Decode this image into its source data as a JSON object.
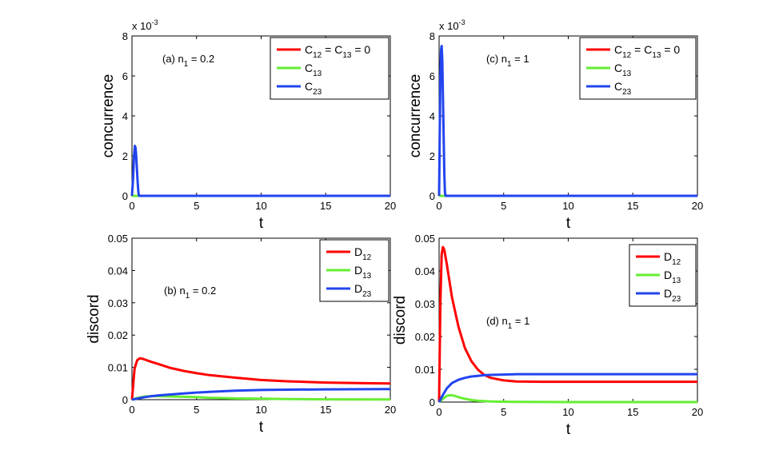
{
  "chart_data": [
    {
      "id": "a",
      "type": "line",
      "annotation": "(a) n",
      "annotation_sub": "1",
      "annotation_tail": " = 0.2",
      "xlabel": "t",
      "ylabel": "concurrence",
      "exponent_label": "x 10",
      "exponent_power": "-3",
      "xlim": [
        0,
        20
      ],
      "ylim": [
        0,
        8
      ],
      "xticks": [
        "0",
        "5",
        "10",
        "15",
        "20"
      ],
      "yticks": [
        "0",
        "2",
        "4",
        "6",
        "8"
      ],
      "legend_position": "top-right",
      "grid": false,
      "series": [
        {
          "name": "C12 = C13 = 0",
          "label_parts": [
            "C",
            "12",
            " = C",
            "13",
            " = 0"
          ],
          "color": "#ff0000",
          "x": [
            0,
            20
          ],
          "y": [
            0,
            0
          ]
        },
        {
          "name": "C13",
          "label_parts": [
            "C",
            "13"
          ],
          "color": "#66ee33",
          "x": [
            0,
            0.4,
            20
          ],
          "y": [
            0,
            0,
            0
          ]
        },
        {
          "name": "C23",
          "label_parts": [
            "C",
            "23"
          ],
          "color": "#2244ee",
          "x": [
            0,
            0.08,
            0.16,
            0.22,
            0.28,
            0.33,
            0.38,
            0.44,
            0.5,
            0.55,
            0.6,
            20
          ],
          "y": [
            0,
            0.8,
            2.0,
            2.5,
            2.4,
            2.0,
            1.4,
            0.7,
            0.15,
            0,
            0,
            0
          ]
        }
      ]
    },
    {
      "id": "c",
      "type": "line",
      "annotation": "(c) n",
      "annotation_sub": "1",
      "annotation_tail": " = 1",
      "xlabel": "t",
      "ylabel": "concurrence",
      "exponent_label": "x 10",
      "exponent_power": "-3",
      "xlim": [
        0,
        20
      ],
      "ylim": [
        0,
        8
      ],
      "xticks": [
        "0",
        "5",
        "10",
        "15",
        "20"
      ],
      "yticks": [
        "0",
        "2",
        "4",
        "6",
        "8"
      ],
      "legend_position": "top-right",
      "grid": false,
      "series": [
        {
          "name": "C12 = C13 = 0",
          "label_parts": [
            "C",
            "12",
            " = C",
            "13",
            " = 0"
          ],
          "color": "#ff0000",
          "x": [
            0,
            20
          ],
          "y": [
            0,
            0
          ]
        },
        {
          "name": "C13",
          "label_parts": [
            "C",
            "13"
          ],
          "color": "#66ee33",
          "x": [
            0,
            0.4,
            20
          ],
          "y": [
            0,
            0,
            0
          ]
        },
        {
          "name": "C23",
          "label_parts": [
            "C",
            "23"
          ],
          "color": "#2244ee",
          "x": [
            0,
            0.05,
            0.1,
            0.15,
            0.2,
            0.25,
            0.3,
            0.35,
            0.4,
            0.45,
            0.5,
            20
          ],
          "y": [
            0,
            3.0,
            6.0,
            7.3,
            7.5,
            6.8,
            5.0,
            3.0,
            1.2,
            0.2,
            0,
            0
          ]
        }
      ]
    },
    {
      "id": "b",
      "type": "line",
      "annotation": "(b) n",
      "annotation_sub": "1",
      "annotation_tail": " = 0.2",
      "xlabel": "t",
      "ylabel": "discord",
      "xlim": [
        0,
        20
      ],
      "ylim": [
        0,
        0.05
      ],
      "xticks": [
        "0",
        "5",
        "10",
        "15",
        "20"
      ],
      "yticks": [
        "0",
        "0.01",
        "0.02",
        "0.03",
        "0.04",
        "0.05"
      ],
      "legend_position": "top-right",
      "grid": false,
      "series": [
        {
          "name": "D12",
          "label_parts": [
            "D",
            "12"
          ],
          "color": "#ff0000",
          "x": [
            0,
            0.2,
            0.4,
            0.6,
            0.8,
            1,
            1.5,
            2,
            3,
            4,
            5,
            6,
            8,
            10,
            12,
            15,
            18,
            20
          ],
          "y": [
            0,
            0.0095,
            0.0122,
            0.0128,
            0.0127,
            0.0124,
            0.0117,
            0.0111,
            0.0098,
            0.0089,
            0.0082,
            0.0076,
            0.0068,
            0.0061,
            0.0057,
            0.0053,
            0.0051,
            0.005
          ]
        },
        {
          "name": "D13",
          "label_parts": [
            "D",
            "13"
          ],
          "color": "#66ee33",
          "x": [
            0,
            0.5,
            1,
            1.5,
            2,
            3,
            4,
            5,
            6,
            8,
            10,
            12,
            15,
            20
          ],
          "y": [
            0,
            0.0006,
            0.001,
            0.0011,
            0.0011,
            0.001,
            0.0009,
            0.0008,
            0.0006,
            0.0004,
            0.0003,
            0.0002,
            0.0001,
            5e-05
          ]
        },
        {
          "name": "D23",
          "label_parts": [
            "D",
            "23"
          ],
          "color": "#2244ee",
          "x": [
            0,
            0.5,
            1,
            1.5,
            2,
            3,
            4,
            5,
            6,
            8,
            10,
            12,
            15,
            20
          ],
          "y": [
            0,
            0.0004,
            0.0008,
            0.0011,
            0.0013,
            0.0016,
            0.0019,
            0.0022,
            0.0024,
            0.0028,
            0.003,
            0.0031,
            0.0032,
            0.0033
          ]
        }
      ]
    },
    {
      "id": "d",
      "type": "line",
      "annotation": "(d) n",
      "annotation_sub": "1",
      "annotation_tail": " = 1",
      "xlabel": "t",
      "ylabel": "discord",
      "xlim": [
        0,
        20
      ],
      "ylim": [
        0,
        0.05
      ],
      "xticks": [
        "0",
        "5",
        "10",
        "15",
        "20"
      ],
      "yticks": [
        "0",
        "0.01",
        "0.02",
        "0.03",
        "0.04",
        "0.05"
      ],
      "legend_position": "top-right",
      "grid": false,
      "series": [
        {
          "name": "D12",
          "label_parts": [
            "D",
            "12"
          ],
          "color": "#ff0000",
          "x": [
            0,
            0.1,
            0.2,
            0.3,
            0.4,
            0.6,
            0.8,
            1,
            1.5,
            2,
            2.5,
            3,
            3.5,
            4,
            5,
            6,
            8,
            10,
            15,
            20
          ],
          "y": [
            0,
            0.03,
            0.045,
            0.0473,
            0.0465,
            0.042,
            0.037,
            0.032,
            0.023,
            0.0165,
            0.0125,
            0.0099,
            0.0083,
            0.0074,
            0.0066,
            0.0063,
            0.0062,
            0.0062,
            0.0062,
            0.0062
          ]
        },
        {
          "name": "D13",
          "label_parts": [
            "D",
            "13"
          ],
          "color": "#66ee33",
          "x": [
            0,
            0.3,
            0.6,
            0.9,
            1.2,
            1.6,
            2,
            2.5,
            3,
            4,
            5,
            6,
            10,
            20
          ],
          "y": [
            0,
            0.001,
            0.0019,
            0.0021,
            0.0019,
            0.0014,
            0.001,
            0.0006,
            0.0004,
            0.0002,
            0.0001,
            5e-05,
            0.0,
            0.0
          ]
        },
        {
          "name": "D23",
          "label_parts": [
            "D",
            "23"
          ],
          "color": "#2244ee",
          "x": [
            0,
            0.3,
            0.6,
            1,
            1.5,
            2,
            2.5,
            3,
            3.5,
            4,
            5,
            6,
            8,
            10,
            15,
            20
          ],
          "y": [
            0,
            0.0022,
            0.0042,
            0.0058,
            0.0068,
            0.0074,
            0.0078,
            0.008,
            0.0082,
            0.0083,
            0.0084,
            0.0085,
            0.0085,
            0.0085,
            0.0085,
            0.0085
          ]
        }
      ]
    }
  ]
}
